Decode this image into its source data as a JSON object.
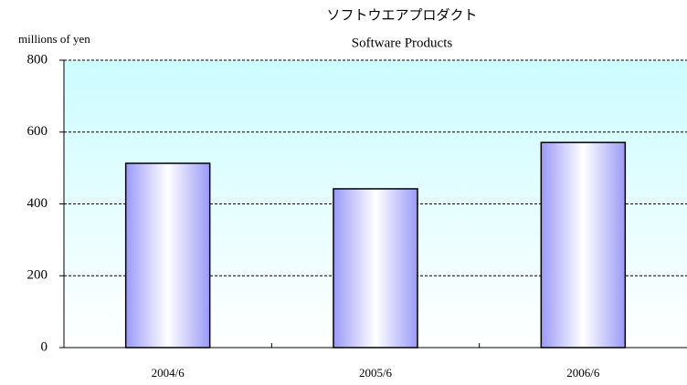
{
  "chart_data": {
    "type": "bar",
    "title": "ソフトウエアプロダクト",
    "subtitle": "Software Products",
    "y_label": "millions of yen",
    "categories": [
      "2004/6",
      "2005/6",
      "2006/6"
    ],
    "values": [
      513,
      442,
      571
    ],
    "color": "#9999ff",
    "ylim": [
      0,
      800
    ],
    "yticks": [
      0,
      200,
      400,
      600,
      800
    ],
    "grid": true
  }
}
